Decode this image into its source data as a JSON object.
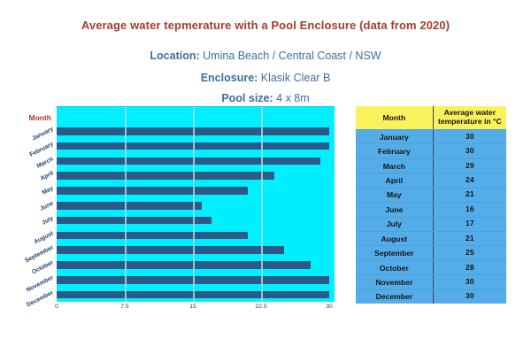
{
  "title": "Average water tepmerature with a Pool Enclosure (data from 2020)",
  "subtitles": [
    {
      "label": "Location:",
      "value": " Umina Beach / Central Coast / NSW"
    },
    {
      "label": "Enclosure:",
      "value": " Klasik Clear B"
    },
    {
      "label": "Pool size:",
      "value": " 4 x 8m"
    }
  ],
  "chart_data": {
    "type": "bar",
    "orientation": "horizontal",
    "axis_title": "Month",
    "categories": [
      "January",
      "February",
      "March",
      "April",
      "May",
      "June",
      "July",
      "August",
      "September",
      "October",
      "November",
      "December"
    ],
    "values": [
      30,
      30,
      29,
      24,
      21,
      16,
      17,
      21,
      25,
      28,
      30,
      30
    ],
    "xlim": [
      0,
      30
    ],
    "x_ticks": [
      "0",
      "7.5",
      "15",
      "22.5",
      "30"
    ],
    "x_tick_values": [
      0,
      7.5,
      15,
      22.5,
      30
    ],
    "gridlines": [
      7.5,
      15,
      22.5
    ],
    "legend": "none",
    "colors": {
      "plot_background": "#00efff",
      "bar": "#2b5a87",
      "gridline": "#a0dce6",
      "axis_title_text": "#a63c2e",
      "category_text": "#1d3f66",
      "tick_text": "#3a3a3a"
    }
  },
  "table": {
    "headers": [
      "Month",
      "Average water temperature in °C"
    ],
    "rows": [
      [
        "January",
        "30"
      ],
      [
        "February",
        "30"
      ],
      [
        "March",
        "29"
      ],
      [
        "April",
        "24"
      ],
      [
        "May",
        "21"
      ],
      [
        "June",
        "16"
      ],
      [
        "July",
        "17"
      ],
      [
        "August",
        "21"
      ],
      [
        "September",
        "25"
      ],
      [
        "October",
        "28"
      ],
      [
        "November",
        "30"
      ],
      [
        "December",
        "30"
      ]
    ],
    "colors": {
      "header_background": "#f9f25c",
      "body_background": "#54ade8",
      "divider": "#31445f",
      "text": "#141414"
    }
  }
}
